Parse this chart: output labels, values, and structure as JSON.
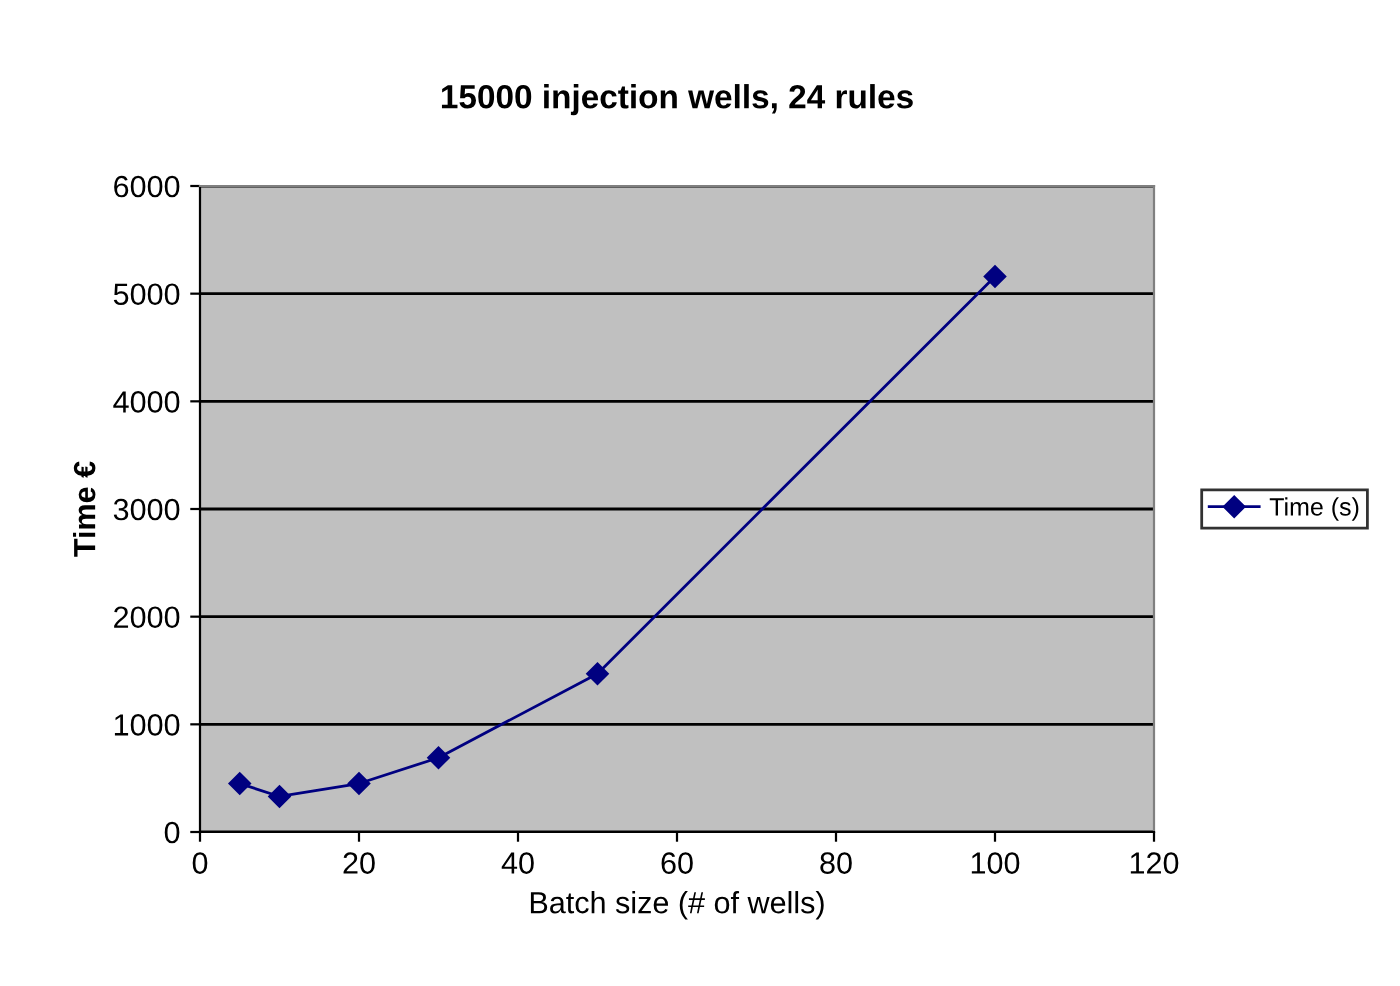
{
  "chart_data": {
    "type": "line",
    "title": "15000 injection wells, 24 rules",
    "xlabel": "Batch size (# of wells)",
    "ylabel": "Time €",
    "x": [
      5,
      10,
      20,
      30,
      50,
      100
    ],
    "series": [
      {
        "name": "Time (s)",
        "color": "#000080",
        "values": [
          450,
          330,
          450,
          690,
          1470,
          5160
        ]
      }
    ],
    "xlim": [
      0,
      120
    ],
    "xticks": [
      0,
      20,
      40,
      60,
      80,
      100,
      120
    ],
    "ylim": [
      0,
      6000
    ],
    "yticks": [
      0,
      1000,
      2000,
      3000,
      4000,
      5000,
      6000
    ],
    "grid": "y",
    "legend": "right",
    "marker": "diamond",
    "line_style": "solid"
  }
}
